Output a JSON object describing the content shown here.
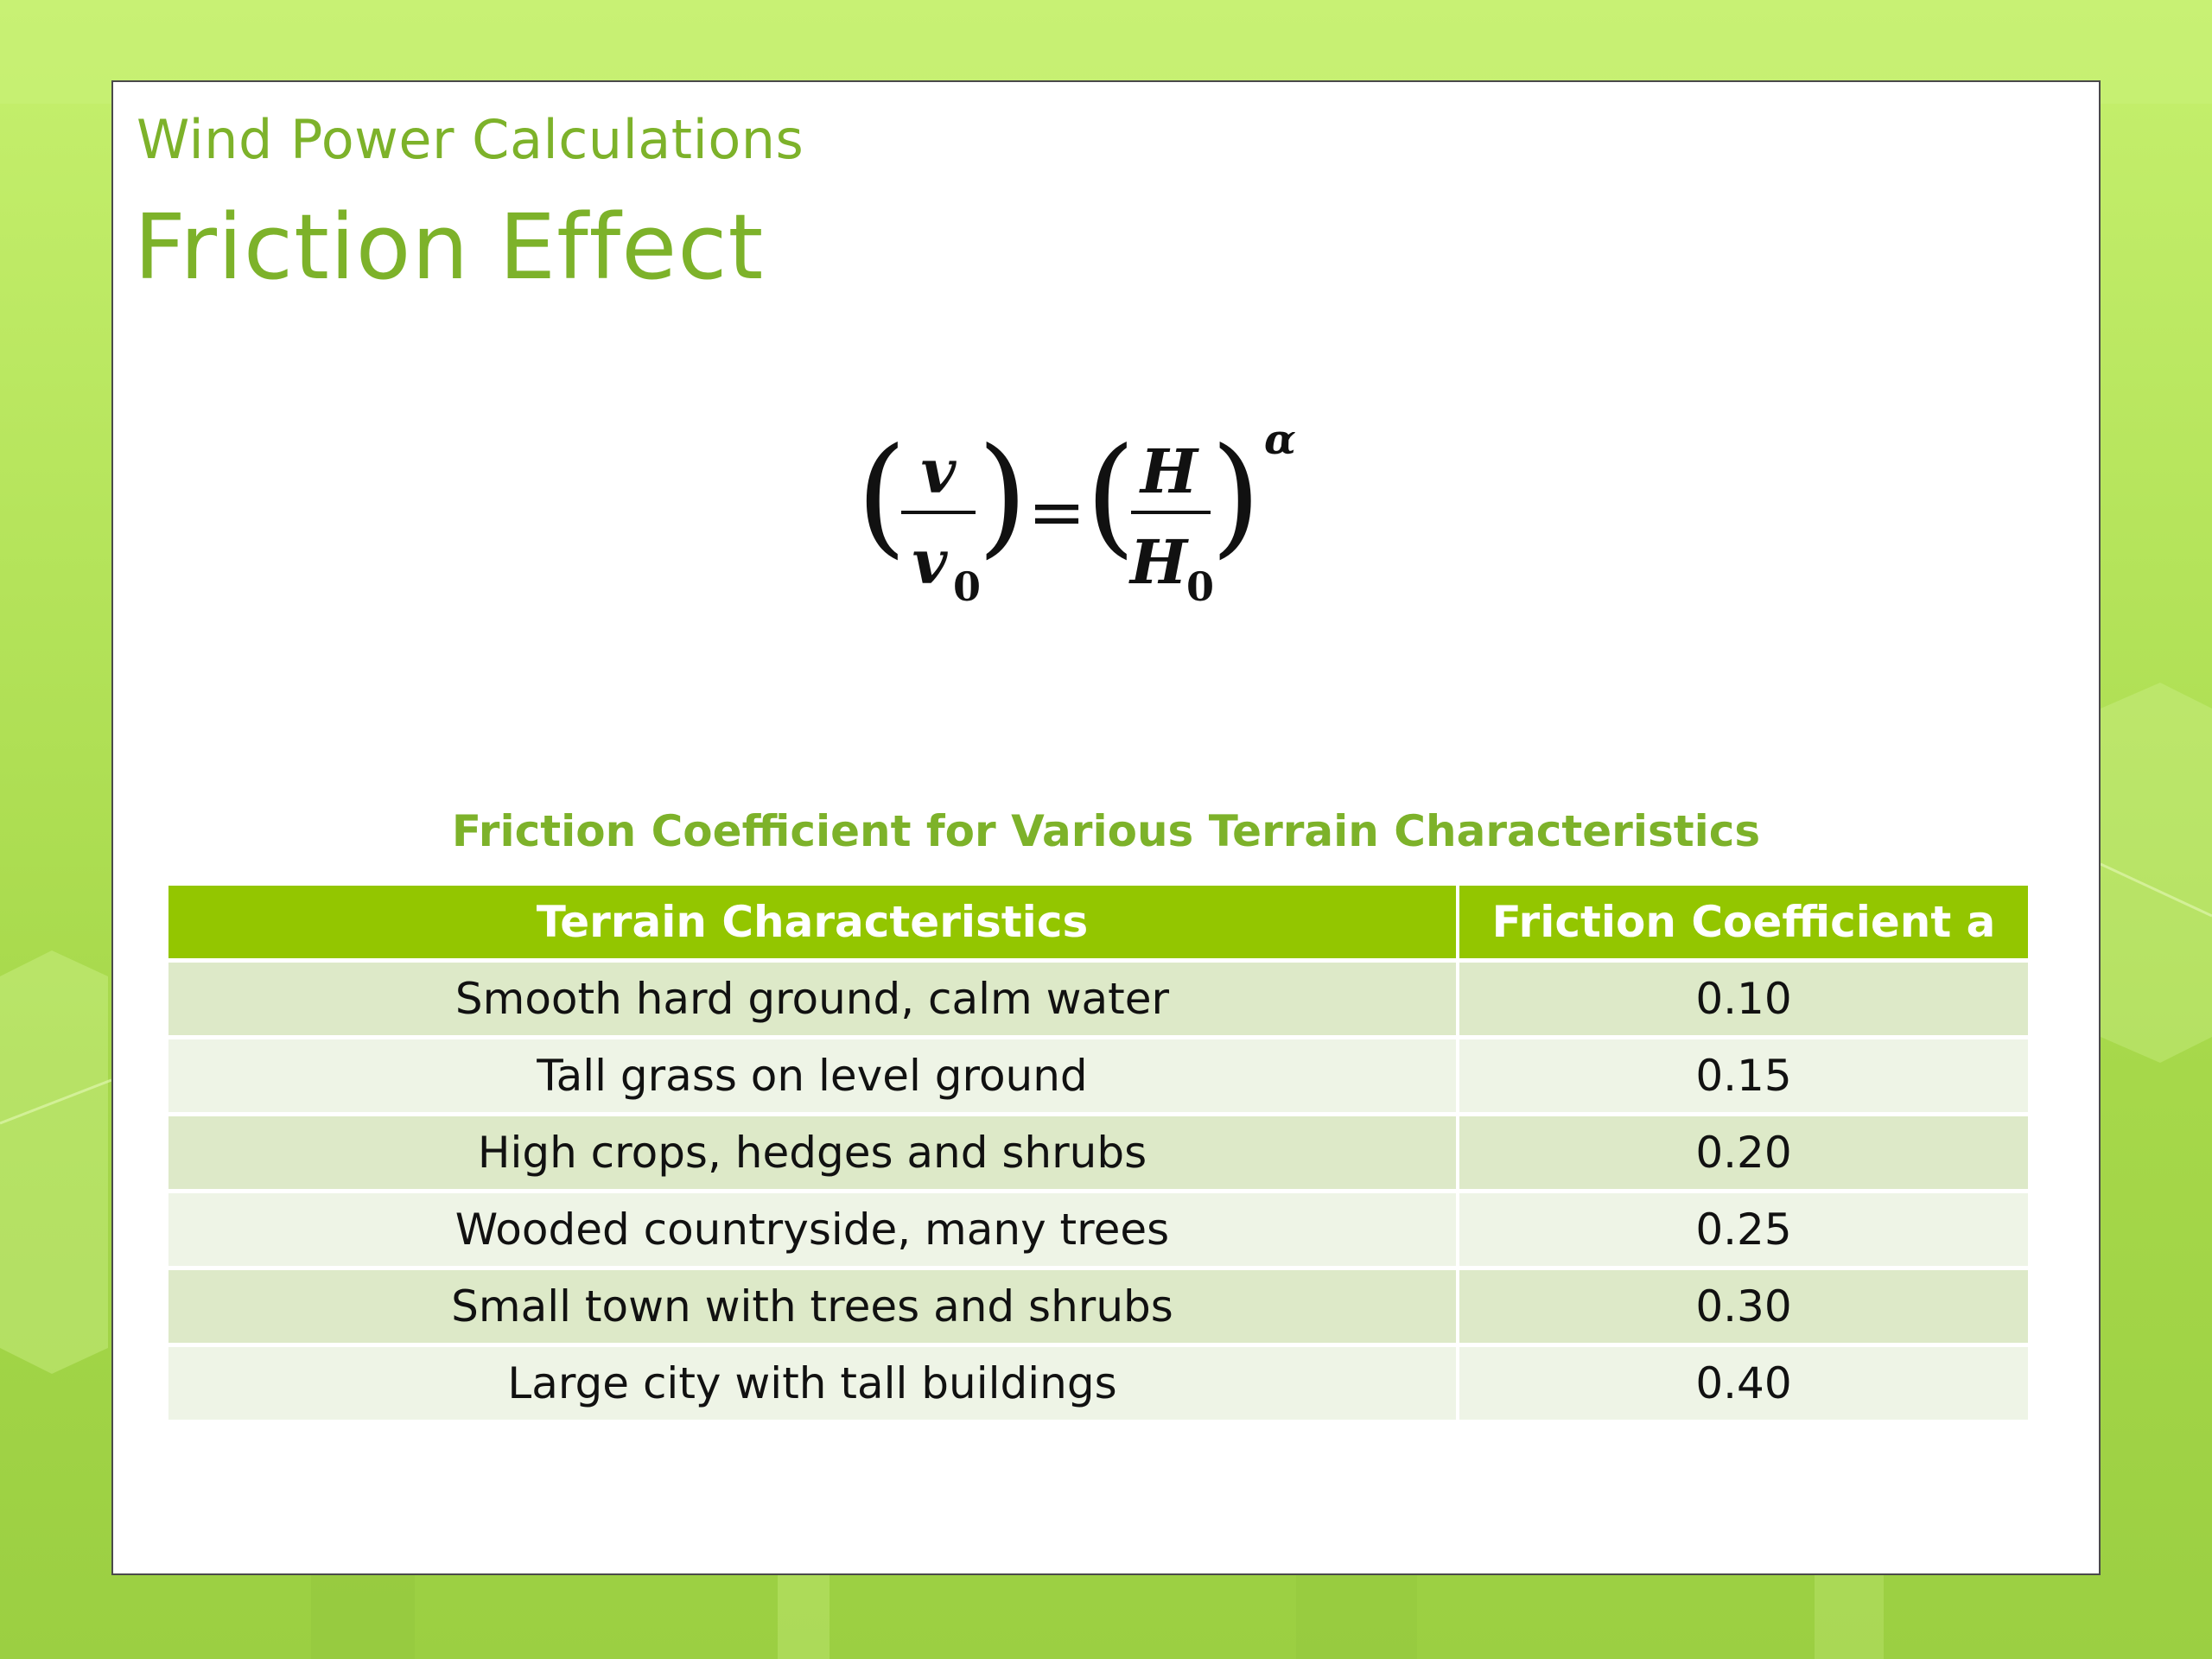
{
  "slide": {
    "subtitle": "Wind Power Calculations",
    "title": "Friction Effect"
  },
  "formula": {
    "lhs_numerator": "v",
    "lhs_denominator": "v",
    "lhs_subscript": "0",
    "equals": "=",
    "rhs_numerator": "H",
    "rhs_denominator": "H",
    "rhs_subscript": "0",
    "exponent": "α"
  },
  "table": {
    "caption": "Friction Coefficient for Various Terrain Characteristics",
    "headers": [
      "Terrain Characteristics",
      "Friction Coefficient a"
    ],
    "rows": [
      [
        "Smooth hard ground, calm water",
        "0.10"
      ],
      [
        "Tall grass on level ground",
        "0.15"
      ],
      [
        "High crops, hedges and shrubs",
        "0.20"
      ],
      [
        "Wooded countryside, many trees",
        "0.25"
      ],
      [
        "Small town with trees and shrubs",
        "0.30"
      ],
      [
        "Large city with tall buildings",
        "0.40"
      ]
    ]
  },
  "colors": {
    "accent": "#7db22a",
    "header_fill": "#93c600",
    "row_odd": "#dde9c8",
    "row_even": "#eef4e6",
    "background": "#b4e35a"
  }
}
